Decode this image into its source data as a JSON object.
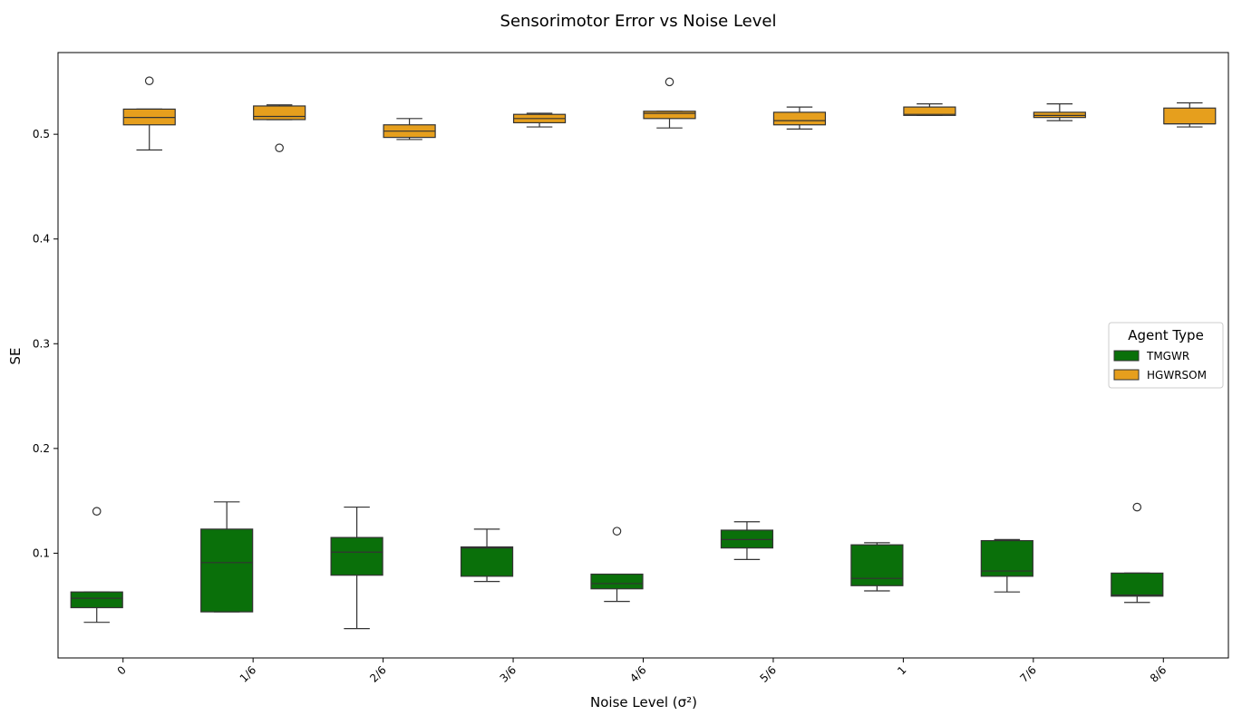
{
  "chart_data": {
    "type": "box",
    "title": "Sensorimotor Error vs Noise Level",
    "xlabel": "Noise Level (σ²)",
    "ylabel": "SE",
    "categories": [
      "0",
      "1/6",
      "2/6",
      "3/6",
      "4/6",
      "5/6",
      "1",
      "7/6",
      "8/6"
    ],
    "ylim": [
      0.0,
      0.578
    ],
    "yticks": [
      0.1,
      0.2,
      0.3,
      0.4,
      0.5
    ],
    "ytick_labels": [
      "0.1",
      "0.2",
      "0.3",
      "0.4",
      "0.5"
    ],
    "grid": false,
    "legend": {
      "title": "Agent Type",
      "placement": "center-right"
    },
    "series": [
      {
        "name": "TMGWR",
        "color": "#0a700a",
        "boxes": [
          {
            "whislo": 0.034,
            "q1": 0.048,
            "med": 0.057,
            "q3": 0.063,
            "whishi": 0.063,
            "fliers": [
              0.14
            ]
          },
          {
            "whislo": 0.044,
            "q1": 0.044,
            "med": 0.091,
            "q3": 0.123,
            "whishi": 0.149,
            "fliers": []
          },
          {
            "whislo": 0.028,
            "q1": 0.079,
            "med": 0.101,
            "q3": 0.115,
            "whishi": 0.144,
            "fliers": []
          },
          {
            "whislo": 0.073,
            "q1": 0.078,
            "med": 0.105,
            "q3": 0.106,
            "whishi": 0.123,
            "fliers": []
          },
          {
            "whislo": 0.054,
            "q1": 0.066,
            "med": 0.071,
            "q3": 0.08,
            "whishi": 0.08,
            "fliers": [
              0.121
            ]
          },
          {
            "whislo": 0.094,
            "q1": 0.105,
            "med": 0.113,
            "q3": 0.122,
            "whishi": 0.13,
            "fliers": []
          },
          {
            "whislo": 0.064,
            "q1": 0.069,
            "med": 0.076,
            "q3": 0.108,
            "whishi": 0.11,
            "fliers": []
          },
          {
            "whislo": 0.063,
            "q1": 0.078,
            "med": 0.083,
            "q3": 0.112,
            "whishi": 0.113,
            "fliers": []
          },
          {
            "whislo": 0.053,
            "q1": 0.059,
            "med": 0.06,
            "q3": 0.081,
            "whishi": 0.081,
            "fliers": [
              0.144
            ]
          }
        ]
      },
      {
        "name": "HGWRSOM",
        "color": "#e69f1d",
        "boxes": [
          {
            "whislo": 0.485,
            "q1": 0.509,
            "med": 0.516,
            "q3": 0.524,
            "whishi": 0.524,
            "fliers": [
              0.551
            ]
          },
          {
            "whislo": 0.514,
            "q1": 0.514,
            "med": 0.517,
            "q3": 0.527,
            "whishi": 0.528,
            "fliers": [
              0.487
            ]
          },
          {
            "whislo": 0.495,
            "q1": 0.497,
            "med": 0.503,
            "q3": 0.509,
            "whishi": 0.515,
            "fliers": []
          },
          {
            "whislo": 0.507,
            "q1": 0.511,
            "med": 0.515,
            "q3": 0.519,
            "whishi": 0.52,
            "fliers": []
          },
          {
            "whislo": 0.506,
            "q1": 0.515,
            "med": 0.52,
            "q3": 0.522,
            "whishi": 0.522,
            "fliers": [
              0.55
            ]
          },
          {
            "whislo": 0.505,
            "q1": 0.509,
            "med": 0.513,
            "q3": 0.521,
            "whishi": 0.526,
            "fliers": []
          },
          {
            "whislo": 0.518,
            "q1": 0.518,
            "med": 0.519,
            "q3": 0.526,
            "whishi": 0.529,
            "fliers": []
          },
          {
            "whislo": 0.513,
            "q1": 0.516,
            "med": 0.518,
            "q3": 0.521,
            "whishi": 0.529,
            "fliers": []
          },
          {
            "whislo": 0.507,
            "q1": 0.51,
            "med": 0.51,
            "q3": 0.525,
            "whishi": 0.53,
            "fliers": []
          }
        ]
      }
    ]
  }
}
